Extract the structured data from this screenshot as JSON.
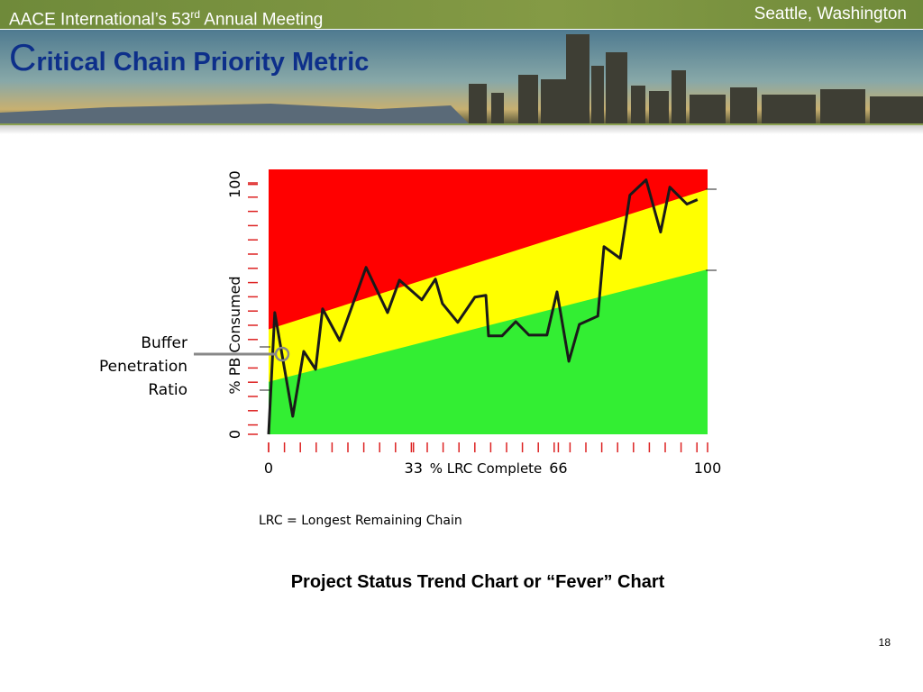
{
  "header": {
    "meeting": "AACE International’s 53",
    "meeting_sup": "rd",
    "meeting_end": " Annual Meeting",
    "location": "Seattle, Washington"
  },
  "slide": {
    "title_initial": "C",
    "title_rest": "ritical Chain Priority Metric",
    "caption": "Project Status Trend Chart or “Fever” Chart",
    "page": "18"
  },
  "chart_data": {
    "type": "line",
    "xlabel": "% LRC Complete",
    "ylabel": "% PB Consumed",
    "xlim": [
      0,
      100
    ],
    "ylim": [
      0,
      106
    ],
    "xticks": [
      0,
      33,
      66,
      100
    ],
    "yticks": [
      0,
      100
    ],
    "zones": {
      "green_top": [
        21,
        66
      ],
      "yellow_top": [
        42,
        98
      ],
      "colors": [
        "#33ee33",
        "#ffff00",
        "#ff0000"
      ]
    },
    "color": "#1a1a1a",
    "x": [
      0,
      1.4,
      5.5,
      8.0,
      10.7,
      12.3,
      16.2,
      22.2,
      27.1,
      29.8,
      34.9,
      38.0,
      39.6,
      43.1,
      47.0,
      49.5,
      50.1,
      53.2,
      56.3,
      59.3,
      63.4,
      65.7,
      68.4,
      70.8,
      75.0,
      76.4,
      80.1,
      82.3,
      86.0,
      89.3,
      91.4,
      95.3,
      97.7
    ],
    "values": [
      0,
      48.7,
      7.2,
      33.2,
      26,
      50.2,
      37.5,
      66.8,
      48.7,
      61.7,
      53.8,
      62.1,
      52.3,
      44.8,
      54.9,
      55.6,
      39.4,
      39.4,
      45.1,
      39.7,
      39.7,
      57.0,
      29.2,
      44,
      47.3,
      75.1,
      70.4,
      95.7,
      101.8,
      80.9,
      98.9,
      92.1,
      93.9
    ],
    "annotation": [
      "Buffer",
      "Penetration",
      "Ratio"
    ],
    "footnote": "LRC = Longest Remaining Chain"
  }
}
